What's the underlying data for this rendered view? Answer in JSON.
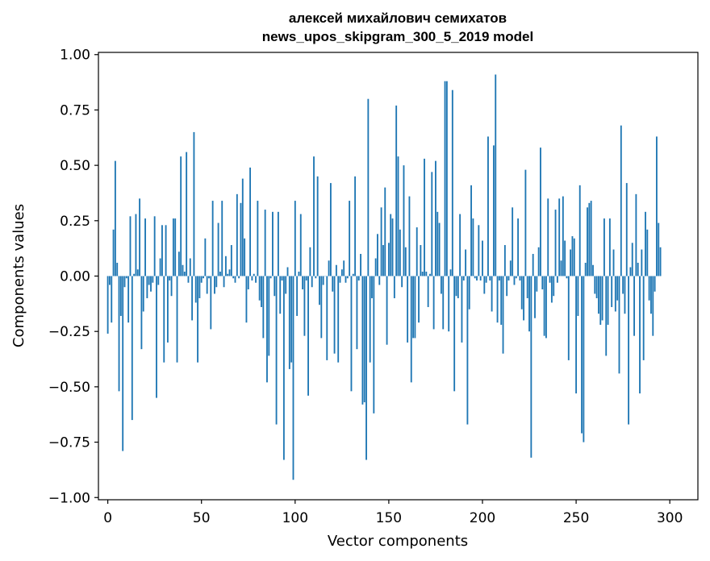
{
  "chart_data": {
    "type": "bar",
    "title": "алексей михайлович семихатов",
    "subtitle": "news_upos_skipgram_300_5_2019 model",
    "xlabel": "Vector components",
    "ylabel": "Components values",
    "xlim": [
      -5,
      315
    ],
    "ylim": [
      -1.01,
      1.01
    ],
    "xticks": [
      0,
      50,
      100,
      150,
      200,
      250,
      300
    ],
    "yticks": [
      -1.0,
      -0.75,
      -0.5,
      -0.25,
      0.0,
      0.25,
      0.5,
      0.75,
      1.0
    ],
    "ytick_labels": [
      "−1.00",
      "−0.75",
      "−0.50",
      "−0.25",
      "0.00",
      "0.25",
      "0.50",
      "0.75",
      "1.00"
    ],
    "bar_color": "#1f77b4",
    "values": [
      -0.26,
      -0.04,
      -0.21,
      0.21,
      0.52,
      0.06,
      -0.52,
      -0.18,
      -0.79,
      -0.05,
      -0.01,
      -0.21,
      0.27,
      -0.65,
      0.01,
      0.28,
      0.03,
      0.35,
      -0.33,
      -0.16,
      0.26,
      -0.1,
      -0.04,
      -0.07,
      -0.03,
      0.27,
      -0.55,
      -0.04,
      0.08,
      0.23,
      -0.39,
      0.23,
      -0.3,
      -0.02,
      -0.09,
      0.26,
      0.26,
      -0.39,
      0.11,
      0.54,
      0.05,
      0.02,
      0.56,
      -0.03,
      0.08,
      -0.2,
      0.65,
      -0.12,
      -0.39,
      -0.1,
      -0.03,
      -0.01,
      0.17,
      -0.08,
      -0.01,
      -0.24,
      0.34,
      -0.08,
      -0.05,
      0.24,
      0.02,
      0.34,
      -0.05,
      0.09,
      0.01,
      0.03,
      0.14,
      -0.01,
      -0.03,
      0.37,
      -0.01,
      0.33,
      0.44,
      0.17,
      -0.21,
      -0.06,
      0.49,
      -0.02,
      0.01,
      -0.03,
      0.34,
      -0.11,
      -0.14,
      -0.28,
      0.3,
      -0.48,
      -0.36,
      -0.01,
      0.29,
      -0.09,
      -0.67,
      0.29,
      -0.17,
      -0.02,
      -0.83,
      -0.08,
      0.04,
      -0.42,
      -0.39,
      -0.92,
      0.34,
      -0.18,
      0.02,
      0.28,
      -0.06,
      -0.27,
      -0.02,
      -0.54,
      0.13,
      -0.05,
      0.54,
      -0.01,
      0.45,
      -0.13,
      -0.28,
      -0.04,
      0.0,
      -0.38,
      0.07,
      0.42,
      -0.07,
      -0.35,
      0.05,
      -0.39,
      -0.03,
      0.03,
      0.07,
      -0.03,
      -0.01,
      0.34,
      -0.52,
      0.01,
      0.45,
      -0.33,
      -0.02,
      0.1,
      -0.58,
      -0.57,
      -0.83,
      0.8,
      -0.39,
      -0.1,
      -0.62,
      0.08,
      0.19,
      -0.04,
      0.31,
      0.14,
      0.4,
      -0.31,
      0.15,
      0.28,
      0.26,
      -0.1,
      0.77,
      0.54,
      0.21,
      -0.05,
      0.5,
      0.13,
      -0.3,
      0.36,
      -0.48,
      -0.28,
      -0.28,
      0.22,
      -0.21,
      0.14,
      0.02,
      0.53,
      0.02,
      -0.14,
      0.01,
      0.47,
      -0.24,
      0.52,
      0.29,
      0.24,
      -0.08,
      -0.24,
      0.88,
      0.88,
      -0.25,
      0.03,
      0.84,
      -0.52,
      -0.09,
      -0.1,
      0.28,
      -0.3,
      -0.02,
      0.12,
      -0.67,
      -0.15,
      0.41,
      0.26,
      -0.01,
      -0.02,
      0.23,
      -0.02,
      0.16,
      -0.08,
      -0.03,
      0.63,
      -0.02,
      -0.16,
      0.59,
      0.91,
      -0.21,
      -0.02,
      -0.22,
      -0.35,
      0.14,
      -0.09,
      -0.02,
      0.07,
      0.31,
      -0.04,
      -0.01,
      0.26,
      -0.02,
      -0.15,
      -0.2,
      0.48,
      -0.1,
      -0.25,
      -0.82,
      0.1,
      -0.19,
      -0.07,
      0.13,
      0.58,
      -0.06,
      -0.27,
      -0.28,
      0.35,
      -0.03,
      -0.12,
      -0.09,
      0.3,
      -0.03,
      0.35,
      0.07,
      0.36,
      0.16,
      -0.01,
      -0.38,
      0.12,
      0.18,
      0.17,
      -0.53,
      -0.18,
      0.41,
      -0.71,
      -0.75,
      0.06,
      0.31,
      0.33,
      0.34,
      0.05,
      -0.08,
      -0.1,
      -0.17,
      -0.22,
      -0.2,
      0.26,
      -0.36,
      -0.22,
      0.26,
      -0.14,
      0.12,
      -0.16,
      -0.11,
      -0.44,
      0.68,
      -0.08,
      -0.17,
      0.42,
      -0.67,
      0.04,
      0.15,
      -0.27,
      0.37,
      0.06,
      -0.53,
      0.12,
      -0.38,
      0.29,
      0.21,
      -0.11,
      -0.17,
      -0.27,
      -0.07,
      0.63,
      0.24,
      0.13
    ]
  }
}
